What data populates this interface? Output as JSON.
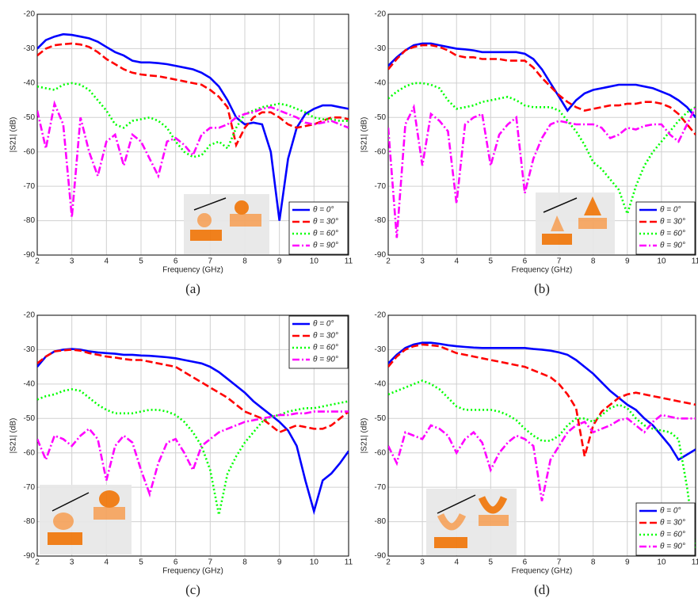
{
  "chart_data": [
    {
      "type": "line",
      "caption": "(a)",
      "xlabel": "Frequency (GHz)",
      "ylabel": "|S21| (dB)",
      "grid": true,
      "legend": "lower right",
      "xlim": [
        2,
        11
      ],
      "ylim": [
        -90,
        -20
      ],
      "xticks": [
        2,
        3,
        4,
        5,
        6,
        7,
        8,
        9,
        10,
        11
      ],
      "yticks": [
        -90,
        -80,
        -70,
        -60,
        -50,
        -40,
        -30,
        -20
      ],
      "x": [
        2,
        2.25,
        2.5,
        2.75,
        3,
        3.25,
        3.5,
        3.75,
        4,
        4.25,
        4.5,
        4.75,
        5,
        5.25,
        5.5,
        5.75,
        6,
        6.25,
        6.5,
        6.75,
        7,
        7.25,
        7.5,
        7.75,
        8,
        8.25,
        8.5,
        8.75,
        9,
        9.25,
        9.5,
        9.75,
        10,
        10.25,
        10.5,
        10.75,
        11
      ],
      "series": [
        {
          "name": "θ = 0°",
          "color": "#0000ff",
          "style": "solid",
          "values": [
            -30,
            -27.5,
            -26.5,
            -25.8,
            -26,
            -26.5,
            -27,
            -28,
            -29.5,
            -31,
            -32,
            -33.5,
            -34,
            -34,
            -34.2,
            -34.5,
            -35,
            -35.5,
            -36,
            -37,
            -38.5,
            -41,
            -45,
            -50,
            -52,
            -51.5,
            -52,
            -60,
            -80,
            -62,
            -53,
            -49,
            -47.5,
            -46.5,
            -46.5,
            -47,
            -47.5
          ]
        },
        {
          "name": "θ = 30°",
          "color": "#ff0000",
          "style": "dashed",
          "values": [
            -32,
            -30,
            -29,
            -28.7,
            -28.5,
            -28.8,
            -29.5,
            -31,
            -33,
            -34.5,
            -36,
            -37,
            -37.5,
            -37.8,
            -38,
            -38.5,
            -39,
            -39.5,
            -40,
            -40.5,
            -42,
            -44,
            -47,
            -58,
            -53,
            -50,
            -48.5,
            -48.5,
            -50,
            -52,
            -53,
            -52.5,
            -52,
            -51,
            -50,
            -50,
            -50.5
          ]
        },
        {
          "name": "θ = 60°",
          "color": "#00ff00",
          "style": "dotted",
          "values": [
            -41,
            -41.5,
            -42,
            -40.5,
            -40,
            -40.5,
            -42,
            -45,
            -48,
            -52,
            -53,
            -51,
            -50.5,
            -50,
            -51,
            -53,
            -57,
            -60,
            -61.5,
            -61,
            -58,
            -57,
            -59,
            -53,
            -49,
            -48,
            -47,
            -46.5,
            -46,
            -46.5,
            -47.5,
            -48.5,
            -50,
            -50.5,
            -50.5,
            -51,
            -51
          ]
        },
        {
          "name": "θ = 90°",
          "color": "#ff00ff",
          "style": "dashdot",
          "values": [
            -48,
            -59,
            -46,
            -52,
            -79,
            -50,
            -60,
            -67,
            -57,
            -55,
            -64,
            -55,
            -57,
            -62,
            -67,
            -57,
            -56,
            -58,
            -61,
            -55,
            -53,
            -53,
            -52,
            -50,
            -49,
            -48.5,
            -47.5,
            -47,
            -48,
            -49,
            -50,
            -51.5,
            -52,
            -51.5,
            -51,
            -52,
            -53
          ]
        }
      ]
    },
    {
      "type": "line",
      "caption": "(b)",
      "xlabel": "Frequency (GHz)",
      "ylabel": "|S21| (dB)",
      "grid": true,
      "legend": "lower right",
      "xlim": [
        2,
        11
      ],
      "ylim": [
        -90,
        -20
      ],
      "xticks": [
        2,
        3,
        4,
        5,
        6,
        7,
        8,
        9,
        10,
        11
      ],
      "yticks": [
        -90,
        -80,
        -70,
        -60,
        -50,
        -40,
        -30,
        -20
      ],
      "x": [
        2,
        2.25,
        2.5,
        2.75,
        3,
        3.25,
        3.5,
        3.75,
        4,
        4.25,
        4.5,
        4.75,
        5,
        5.25,
        5.5,
        5.75,
        6,
        6.25,
        6.5,
        6.75,
        7,
        7.25,
        7.5,
        7.75,
        8,
        8.25,
        8.5,
        8.75,
        9,
        9.25,
        9.5,
        9.75,
        10,
        10.25,
        10.5,
        10.75,
        11
      ],
      "series": [
        {
          "name": "θ = 0°",
          "color": "#0000ff",
          "style": "solid",
          "values": [
            -35,
            -32.5,
            -30.5,
            -29,
            -28.5,
            -28.5,
            -29,
            -29.5,
            -30,
            -30.2,
            -30.5,
            -31,
            -31,
            -31,
            -31,
            -31,
            -31.5,
            -33,
            -36,
            -40,
            -44,
            -48,
            -45,
            -43,
            -42,
            -41.5,
            -41,
            -40.5,
            -40.5,
            -40.5,
            -41,
            -41.5,
            -42.5,
            -43.5,
            -45,
            -47,
            -50
          ]
        },
        {
          "name": "θ = 30°",
          "color": "#ff0000",
          "style": "dashed",
          "values": [
            -36,
            -33,
            -30.5,
            -29.5,
            -29,
            -29,
            -29.5,
            -30.5,
            -32,
            -32.5,
            -32.5,
            -33,
            -33,
            -33,
            -33.5,
            -33.5,
            -33.5,
            -35.5,
            -38.5,
            -41,
            -43.5,
            -45.5,
            -47,
            -48,
            -47.5,
            -47,
            -46.5,
            -46.5,
            -46,
            -46,
            -45.5,
            -45.5,
            -46,
            -47,
            -49,
            -52,
            -55
          ]
        },
        {
          "name": "θ = 60°",
          "color": "#00ff00",
          "style": "dotted",
          "values": [
            -44.5,
            -42.5,
            -41,
            -40,
            -40,
            -40.5,
            -41.5,
            -45,
            -47.5,
            -47,
            -46.5,
            -45.5,
            -45,
            -44.5,
            -44,
            -45,
            -46.5,
            -47,
            -47,
            -47,
            -48,
            -51,
            -54,
            -58,
            -63,
            -65,
            -68,
            -71,
            -78,
            -70,
            -64,
            -60,
            -57,
            -54,
            -51,
            -48.5,
            -47
          ]
        },
        {
          "name": "θ = 90°",
          "color": "#ff00ff",
          "style": "dashdot",
          "values": [
            -53,
            -85,
            -52,
            -47,
            -64,
            -49,
            -51,
            -54,
            -75,
            -52,
            -50,
            -49,
            -64,
            -55,
            -52,
            -50,
            -72,
            -62,
            -56,
            -52,
            -51,
            -51.5,
            -52,
            -52,
            -52,
            -53,
            -56,
            -55,
            -53,
            -53.5,
            -52.5,
            -52,
            -52,
            -55,
            -57,
            -52,
            -47
          ]
        }
      ]
    },
    {
      "type": "line",
      "caption": "(c)",
      "xlabel": "Frequency (GHz)",
      "ylabel": "|S21| (dB)",
      "grid": true,
      "legend": "upper right",
      "xlim": [
        2,
        11
      ],
      "ylim": [
        -90,
        -20
      ],
      "xticks": [
        2,
        3,
        4,
        5,
        6,
        7,
        8,
        9,
        10,
        11
      ],
      "yticks": [
        -90,
        -80,
        -70,
        -60,
        -50,
        -40,
        -30,
        -20
      ],
      "x": [
        2,
        2.25,
        2.5,
        2.75,
        3,
        3.25,
        3.5,
        3.75,
        4,
        4.25,
        4.5,
        4.75,
        5,
        5.25,
        5.5,
        5.75,
        6,
        6.25,
        6.5,
        6.75,
        7,
        7.25,
        7.5,
        7.75,
        8,
        8.25,
        8.5,
        8.75,
        9,
        9.25,
        9.5,
        9.75,
        10,
        10.25,
        10.5,
        10.75,
        11
      ],
      "series": [
        {
          "name": "θ = 0°",
          "color": "#0000ff",
          "style": "solid",
          "values": [
            -35,
            -32,
            -30.5,
            -30,
            -29.8,
            -30,
            -30.5,
            -30.8,
            -31,
            -31.2,
            -31.5,
            -31.5,
            -31.7,
            -31.8,
            -32,
            -32.2,
            -32.5,
            -33,
            -33.5,
            -34,
            -35,
            -36.5,
            -38.5,
            -40.5,
            -42.5,
            -45,
            -47,
            -49,
            -51,
            -53.5,
            -58,
            -68,
            -77,
            -68,
            -66,
            -63,
            -59.5
          ]
        },
        {
          "name": "θ = 30°",
          "color": "#ff0000",
          "style": "dashed",
          "values": [
            -34,
            -32,
            -30.5,
            -30.2,
            -30,
            -30.3,
            -31,
            -31.5,
            -32,
            -32.3,
            -32.7,
            -33,
            -33,
            -33.5,
            -34,
            -34.5,
            -35,
            -36.5,
            -38,
            -39.5,
            -41,
            -42.5,
            -44,
            -46,
            -48,
            -49,
            -50,
            -52,
            -54,
            -53,
            -52,
            -52.5,
            -53,
            -53,
            -52,
            -50,
            -48
          ]
        },
        {
          "name": "θ = 60°",
          "color": "#00ff00",
          "style": "dotted",
          "values": [
            -44.5,
            -43.5,
            -43,
            -42,
            -41.5,
            -42,
            -44,
            -46,
            -47.5,
            -48.5,
            -48.5,
            -48.5,
            -48,
            -47.5,
            -47.5,
            -48,
            -49,
            -51,
            -54,
            -58,
            -65,
            -78,
            -66,
            -61,
            -57,
            -54,
            -51,
            -49.5,
            -49,
            -48,
            -47.5,
            -47,
            -47,
            -46.5,
            -46,
            -45.5,
            -45
          ]
        },
        {
          "name": "θ = 90°",
          "color": "#ff00ff",
          "style": "dashdot",
          "values": [
            -56,
            -62,
            -55,
            -56,
            -58,
            -55,
            -53,
            -56,
            -68,
            -58,
            -55,
            -57,
            -65,
            -72,
            -63,
            -57,
            -56,
            -60,
            -65,
            -58,
            -56,
            -54,
            -53,
            -52,
            -51,
            -50.5,
            -50,
            -49.5,
            -49,
            -49,
            -48.5,
            -48.5,
            -48,
            -48,
            -48,
            -48,
            -48
          ]
        }
      ]
    },
    {
      "type": "line",
      "caption": "(d)",
      "xlabel": "Frequency (GHz)",
      "ylabel": "|S21| (dB)",
      "grid": true,
      "legend": "lower right",
      "xlim": [
        2,
        11
      ],
      "ylim": [
        -90,
        -20
      ],
      "xticks": [
        2,
        3,
        4,
        5,
        6,
        7,
        8,
        9,
        10,
        11
      ],
      "yticks": [
        -90,
        -80,
        -70,
        -60,
        -50,
        -40,
        -30,
        -20
      ],
      "x": [
        2,
        2.25,
        2.5,
        2.75,
        3,
        3.25,
        3.5,
        3.75,
        4,
        4.25,
        4.5,
        4.75,
        5,
        5.25,
        5.5,
        5.75,
        6,
        6.25,
        6.5,
        6.75,
        7,
        7.25,
        7.5,
        7.75,
        8,
        8.25,
        8.5,
        8.75,
        9,
        9.25,
        9.5,
        9.75,
        10,
        10.25,
        10.5,
        10.75,
        11
      ],
      "series": [
        {
          "name": "θ = 0°",
          "color": "#0000ff",
          "style": "solid",
          "values": [
            -34,
            -31.5,
            -29.5,
            -28.5,
            -28,
            -28,
            -28.3,
            -28.7,
            -29,
            -29.2,
            -29.4,
            -29.5,
            -29.5,
            -29.5,
            -29.5,
            -29.5,
            -29.5,
            -29.8,
            -30,
            -30.3,
            -30.8,
            -31.5,
            -33,
            -35,
            -37,
            -39.5,
            -42,
            -44,
            -46,
            -47.5,
            -50,
            -52,
            -55,
            -58,
            -62,
            -60.5,
            -59
          ]
        },
        {
          "name": "θ = 30°",
          "color": "#ff0000",
          "style": "dashed",
          "values": [
            -35,
            -32,
            -30,
            -29,
            -28.5,
            -28.7,
            -29,
            -30,
            -31,
            -31.5,
            -32,
            -32.5,
            -33,
            -33.5,
            -34,
            -34.5,
            -35,
            -36,
            -37,
            -38,
            -40,
            -43,
            -47,
            -61,
            -52,
            -48,
            -46,
            -44,
            -43,
            -42.5,
            -43,
            -43.5,
            -44,
            -44.5,
            -45,
            -45.5,
            -46
          ]
        },
        {
          "name": "θ = 60°",
          "color": "#00ff00",
          "style": "dotted",
          "values": [
            -43,
            -42,
            -41,
            -40,
            -39,
            -40,
            -41.5,
            -44,
            -46.5,
            -47.5,
            -47.5,
            -47.5,
            -47.5,
            -48,
            -49,
            -50.5,
            -53,
            -55,
            -56.5,
            -56.5,
            -55,
            -52,
            -50,
            -50,
            -51,
            -49,
            -47,
            -46,
            -47,
            -50,
            -52,
            -53,
            -53.5,
            -54,
            -56,
            -70,
            -88
          ]
        },
        {
          "name": "θ = 90°",
          "color": "#ff00ff",
          "style": "dashdot",
          "values": [
            -58,
            -63,
            -54,
            -55,
            -56,
            -52,
            -53,
            -55,
            -60,
            -56,
            -54,
            -57,
            -65,
            -60,
            -57,
            -55,
            -56,
            -58,
            -74,
            -62,
            -58,
            -54,
            -52,
            -51,
            -54,
            -53,
            -52,
            -50.5,
            -50,
            -52,
            -54,
            -51,
            -49,
            -49.5,
            -50,
            -50,
            -50
          ]
        }
      ]
    }
  ]
}
